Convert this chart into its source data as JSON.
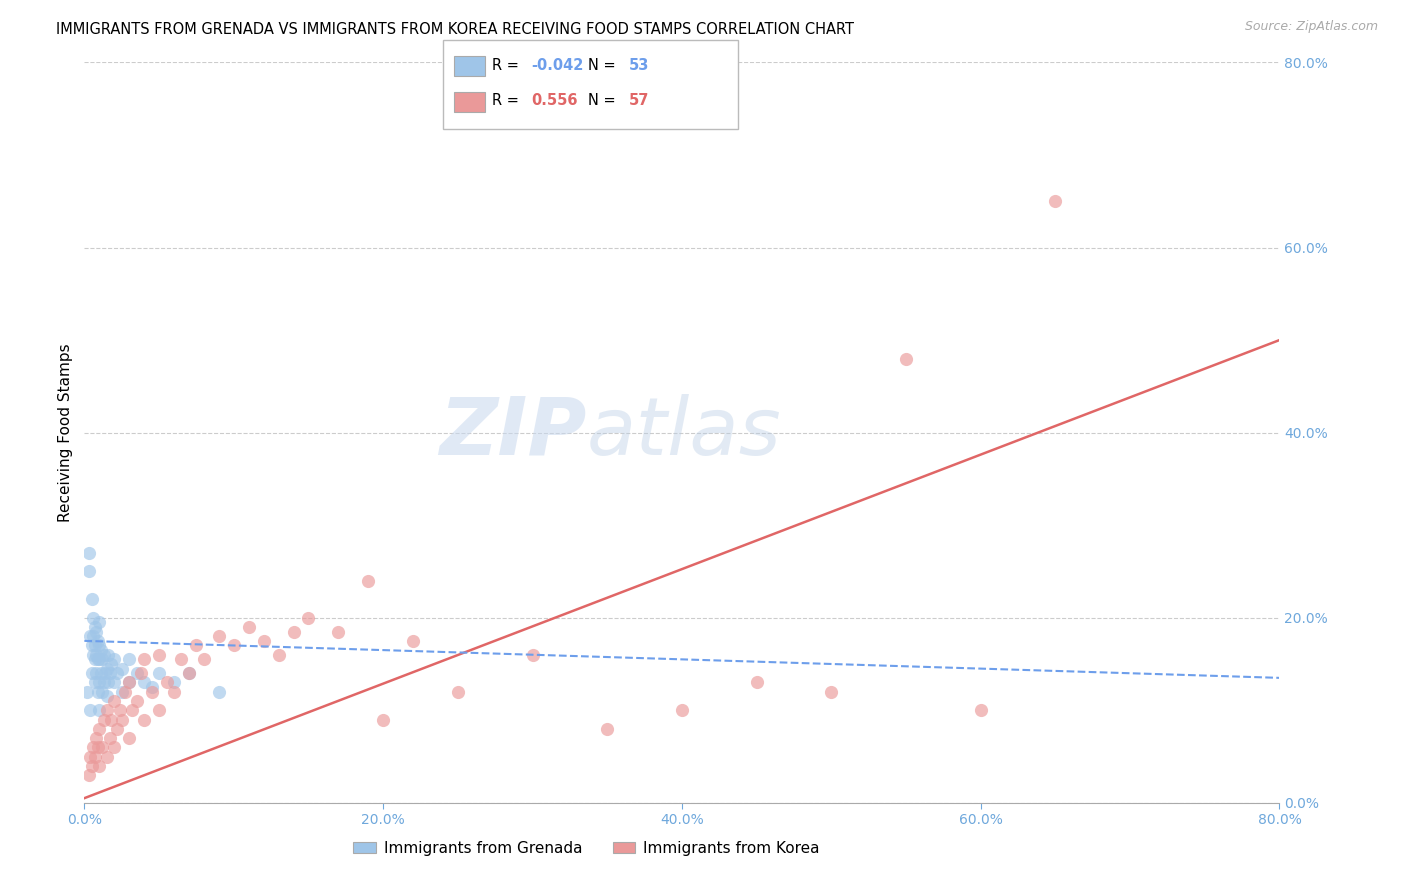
{
  "title": "IMMIGRANTS FROM GRENADA VS IMMIGRANTS FROM KOREA RECEIVING FOOD STAMPS CORRELATION CHART",
  "source": "Source: ZipAtlas.com",
  "ylabel": "Receiving Food Stamps",
  "xmin": 0.0,
  "xmax": 0.8,
  "ymin": 0.0,
  "ymax": 0.8,
  "watermark_zip": "ZIP",
  "watermark_atlas": "atlas",
  "grenada_R": -0.042,
  "grenada_N": 53,
  "korea_R": 0.556,
  "korea_N": 57,
  "grenada_color": "#9fc5e8",
  "korea_color": "#ea9999",
  "grenada_line_color": "#6d9eeb",
  "korea_line_color": "#e06666",
  "axis_color": "#6fa8dc",
  "grid_color": "#cccccc",
  "background_color": "#ffffff",
  "title_fontsize": 10.5,
  "tick_fontsize": 10,
  "ylabel_fontsize": 11,
  "grenada_scatter_x": [
    0.002,
    0.003,
    0.003,
    0.004,
    0.004,
    0.005,
    0.005,
    0.005,
    0.006,
    0.006,
    0.006,
    0.007,
    0.007,
    0.007,
    0.007,
    0.008,
    0.008,
    0.008,
    0.009,
    0.009,
    0.009,
    0.01,
    0.01,
    0.01,
    0.01,
    0.01,
    0.011,
    0.011,
    0.012,
    0.012,
    0.013,
    0.013,
    0.014,
    0.015,
    0.015,
    0.016,
    0.016,
    0.017,
    0.018,
    0.02,
    0.02,
    0.022,
    0.025,
    0.025,
    0.03,
    0.03,
    0.035,
    0.04,
    0.045,
    0.05,
    0.06,
    0.07,
    0.09
  ],
  "grenada_scatter_y": [
    0.12,
    0.25,
    0.27,
    0.1,
    0.18,
    0.14,
    0.17,
    0.22,
    0.16,
    0.18,
    0.2,
    0.13,
    0.155,
    0.17,
    0.19,
    0.14,
    0.16,
    0.185,
    0.12,
    0.155,
    0.175,
    0.1,
    0.13,
    0.155,
    0.17,
    0.195,
    0.14,
    0.165,
    0.12,
    0.155,
    0.13,
    0.16,
    0.14,
    0.115,
    0.145,
    0.13,
    0.16,
    0.14,
    0.15,
    0.13,
    0.155,
    0.14,
    0.12,
    0.145,
    0.13,
    0.155,
    0.14,
    0.13,
    0.125,
    0.14,
    0.13,
    0.14,
    0.12
  ],
  "korea_scatter_x": [
    0.003,
    0.004,
    0.005,
    0.006,
    0.007,
    0.008,
    0.009,
    0.01,
    0.01,
    0.012,
    0.013,
    0.015,
    0.015,
    0.017,
    0.018,
    0.02,
    0.02,
    0.022,
    0.024,
    0.025,
    0.027,
    0.03,
    0.03,
    0.032,
    0.035,
    0.038,
    0.04,
    0.04,
    0.045,
    0.05,
    0.05,
    0.055,
    0.06,
    0.065,
    0.07,
    0.075,
    0.08,
    0.09,
    0.1,
    0.11,
    0.12,
    0.13,
    0.14,
    0.15,
    0.17,
    0.19,
    0.2,
    0.22,
    0.25,
    0.3,
    0.35,
    0.4,
    0.45,
    0.5,
    0.55,
    0.6,
    0.65
  ],
  "korea_scatter_y": [
    0.03,
    0.05,
    0.04,
    0.06,
    0.05,
    0.07,
    0.06,
    0.04,
    0.08,
    0.06,
    0.09,
    0.05,
    0.1,
    0.07,
    0.09,
    0.06,
    0.11,
    0.08,
    0.1,
    0.09,
    0.12,
    0.07,
    0.13,
    0.1,
    0.11,
    0.14,
    0.09,
    0.155,
    0.12,
    0.1,
    0.16,
    0.13,
    0.12,
    0.155,
    0.14,
    0.17,
    0.155,
    0.18,
    0.17,
    0.19,
    0.175,
    0.16,
    0.185,
    0.2,
    0.185,
    0.24,
    0.09,
    0.175,
    0.12,
    0.16,
    0.08,
    0.1,
    0.13,
    0.12,
    0.48,
    0.1,
    0.65
  ],
  "korea_line_x0": 0.0,
  "korea_line_y0": 0.005,
  "korea_line_x1": 0.8,
  "korea_line_y1": 0.5,
  "grenada_line_x0": 0.0,
  "grenada_line_y0": 0.175,
  "grenada_line_x1": 0.8,
  "grenada_line_y1": 0.135
}
